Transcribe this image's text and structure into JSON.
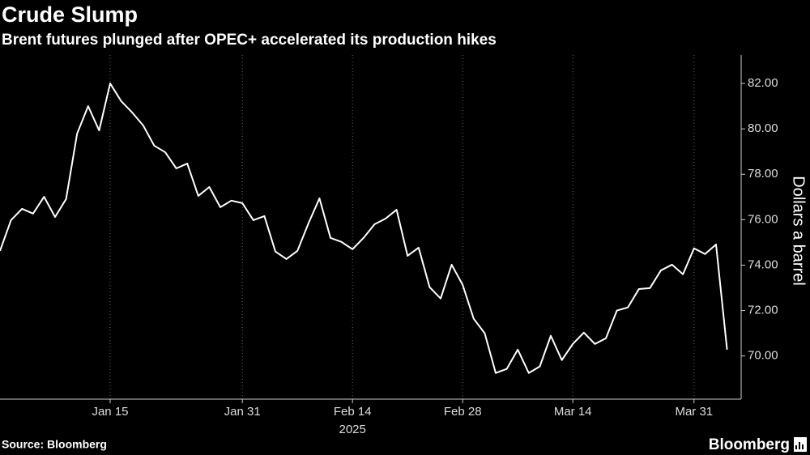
{
  "chart_data": {
    "type": "line",
    "title": "Crude Slump",
    "subtitle": "Brent futures plunged after OPEC+ accelerated its production hikes",
    "y_label": "Dollars a barrel",
    "x_sublabel": "2025",
    "source": "Source: Bloomberg",
    "brand": "Bloomberg",
    "categories": [
      null,
      null,
      null,
      null,
      null,
      null,
      null,
      null,
      null,
      null,
      "Jan 15",
      null,
      null,
      null,
      null,
      null,
      null,
      null,
      null,
      null,
      null,
      null,
      "Jan 31",
      null,
      null,
      null,
      null,
      null,
      null,
      null,
      null,
      null,
      "Feb 14",
      null,
      null,
      null,
      null,
      null,
      null,
      null,
      null,
      null,
      "Feb 28",
      null,
      null,
      null,
      null,
      null,
      null,
      null,
      null,
      null,
      "Mar 14",
      null,
      null,
      null,
      null,
      null,
      null,
      null,
      null,
      null,
      null,
      "Mar 31",
      null,
      null,
      null
    ],
    "series": [
      {
        "name": "Brent",
        "color": "#ffffff",
        "values": [
          74.63,
          75.98,
          76.48,
          76.27,
          77.01,
          76.12,
          76.91,
          79.79,
          81.0,
          79.93,
          82.0,
          81.22,
          80.72,
          80.15,
          79.26,
          78.97,
          78.26,
          78.47,
          77.05,
          77.44,
          76.55,
          76.84,
          76.73,
          75.98,
          76.16,
          74.6,
          74.27,
          74.63,
          75.84,
          76.94,
          75.2,
          75.02,
          74.7,
          75.2,
          75.8,
          76.05,
          76.44,
          74.41,
          74.77,
          73.03,
          72.53,
          74.02,
          73.13,
          71.64,
          71.0,
          69.25,
          69.43,
          70.28,
          69.25,
          69.54,
          70.89,
          69.82,
          70.53,
          71.03,
          70.53,
          70.78,
          72.0,
          72.14,
          72.95,
          72.99,
          73.77,
          74.02,
          73.6,
          74.74,
          74.49,
          74.91,
          70.28
        ]
      }
    ],
    "ylim": [
      68.1,
      83.25
    ],
    "yticks": [
      {
        "value": 70,
        "label": "70.00"
      },
      {
        "value": 72,
        "label": "72.00"
      },
      {
        "value": 74,
        "label": "74.00"
      },
      {
        "value": 76,
        "label": "76.00"
      },
      {
        "value": 78,
        "label": "78.00"
      },
      {
        "value": 80,
        "label": "80.00"
      },
      {
        "value": 82,
        "label": "82.00"
      }
    ],
    "grid": true,
    "y_axis_side": "right"
  }
}
